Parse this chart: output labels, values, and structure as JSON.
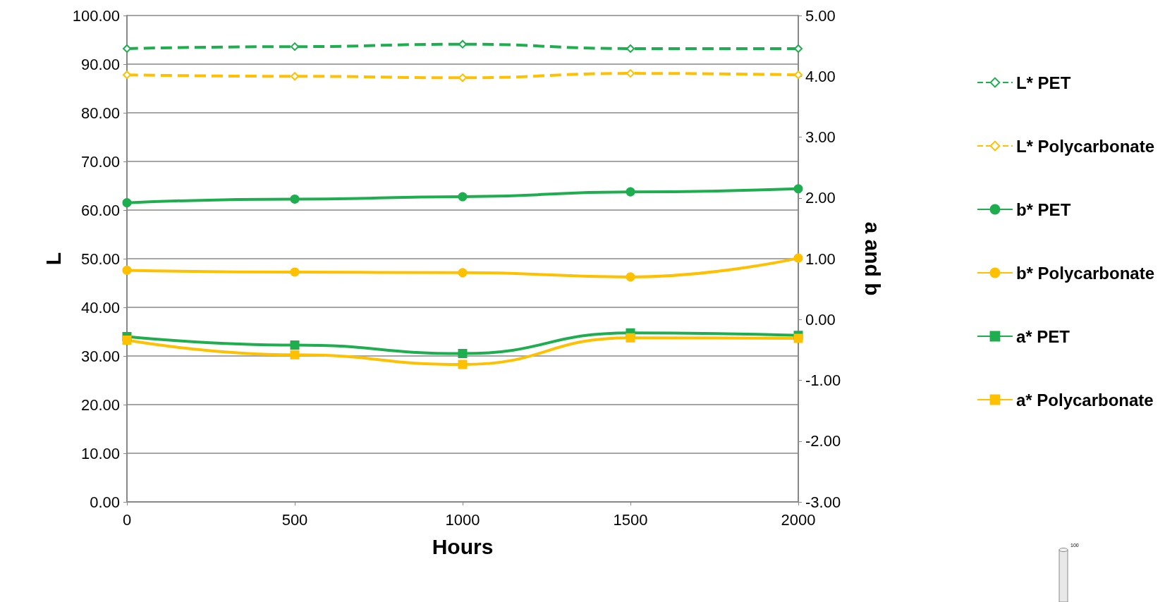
{
  "chart_data": {
    "type": "line",
    "xlabel": "Hours",
    "ylabel": "L",
    "y2label": "a and b",
    "x": [
      0,
      500,
      1000,
      1500,
      2000
    ],
    "series": [
      {
        "name": "L* PET",
        "color": "#1fae4f",
        "marker": "diamond",
        "line_style": "dashed",
        "values": [
          93.2,
          93.6,
          94.1,
          93.2,
          93.2
        ]
      },
      {
        "name": "L* Polycarbonate",
        "color": "#ffc000",
        "marker": "diamond",
        "line_style": "dashed",
        "values": [
          87.8,
          87.5,
          87.2,
          88.1,
          87.8
        ]
      },
      {
        "name": "b* PET",
        "color": "#1fae4f",
        "marker": "circle",
        "line_style": "solid",
        "axis": "y2",
        "values": [
          1.92,
          1.98,
          2.02,
          2.1,
          2.15
        ]
      },
      {
        "name": "b* Polycarbonate",
        "color": "#ffc000",
        "marker": "circle",
        "line_style": "solid",
        "axis": "y2",
        "values": [
          0.81,
          0.78,
          0.77,
          0.7,
          1.01
        ]
      },
      {
        "name": "a* PET",
        "color": "#1fae4f",
        "marker": "square",
        "line_style": "solid",
        "axis": "y2",
        "values": [
          -0.28,
          -0.42,
          -0.56,
          -0.22,
          -0.26
        ]
      },
      {
        "name": "a* Polycarbonate",
        "color": "#ffc000",
        "marker": "square",
        "line_style": "solid",
        "axis": "y2",
        "values": [
          -0.34,
          -0.58,
          -0.74,
          -0.3,
          -0.31
        ]
      }
    ],
    "xlim": [
      0,
      2000
    ],
    "xticks": [
      0,
      500,
      1000,
      1500,
      2000
    ],
    "ylim": [
      0,
      100
    ],
    "yticks": [
      {
        "value": 0,
        "label": "0.00"
      },
      {
        "value": 10,
        "label": "10.00"
      },
      {
        "value": 20,
        "label": "20.00"
      },
      {
        "value": 30,
        "label": "30.00"
      },
      {
        "value": 40,
        "label": "40.00"
      },
      {
        "value": 50,
        "label": "50.00"
      },
      {
        "value": 60,
        "label": "60.00"
      },
      {
        "value": 70,
        "label": "70.00"
      },
      {
        "value": 80,
        "label": "80.00"
      },
      {
        "value": 90,
        "label": "90.00"
      },
      {
        "value": 100,
        "label": "100.00"
      }
    ],
    "y2lim": [
      -3,
      5
    ],
    "y2ticks": [
      {
        "value": -3,
        "label": "-3.00"
      },
      {
        "value": -2,
        "label": "-2.00"
      },
      {
        "value": -1,
        "label": "-1.00"
      },
      {
        "value": 0,
        "label": "0.00"
      },
      {
        "value": 1,
        "label": "1.00"
      },
      {
        "value": 2,
        "label": "2.00"
      },
      {
        "value": 3,
        "label": "3.00"
      },
      {
        "value": 4,
        "label": "4.00"
      },
      {
        "value": 5,
        "label": "5.00"
      }
    ],
    "grid": "y",
    "legend": "right",
    "annotations": [
      "100"
    ]
  }
}
